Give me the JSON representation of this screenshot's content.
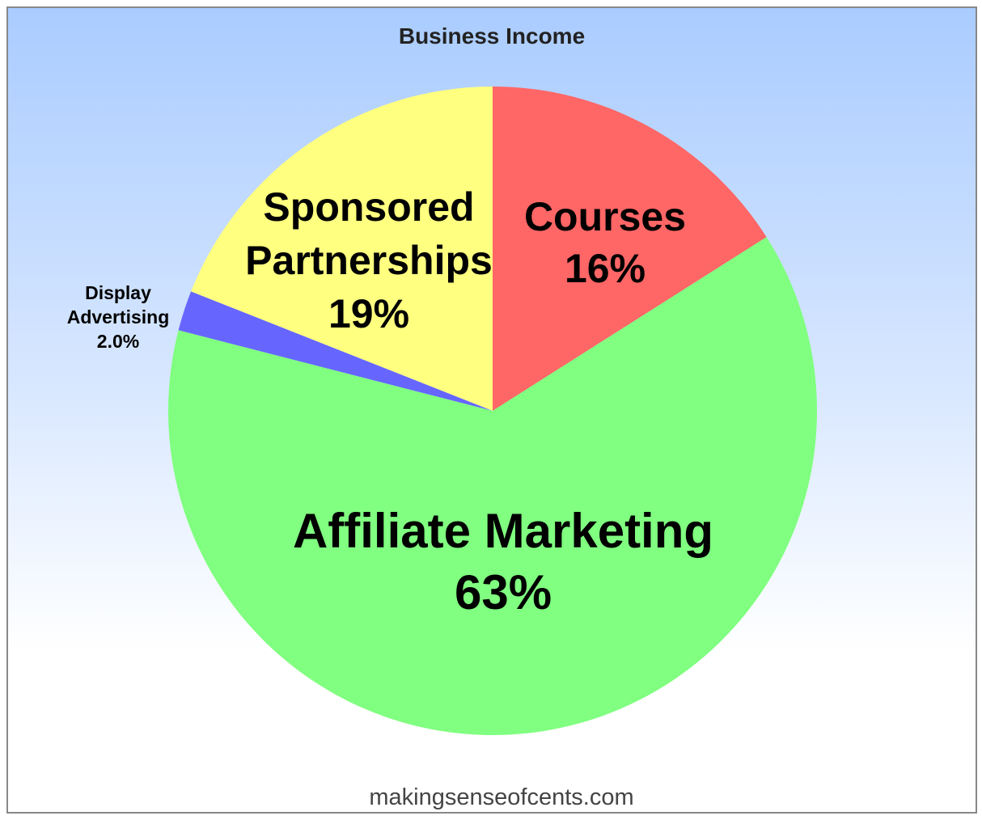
{
  "chart_data": {
    "type": "pie",
    "title": "Business Income",
    "start_angle": "12 o'clock, clockwise",
    "slices": [
      {
        "label": "Courses",
        "value": 16,
        "value_label": "16%",
        "color": "#ff6666"
      },
      {
        "label": "Affiliate Marketing",
        "value": 63,
        "value_label": "63%",
        "color": "#80ff80"
      },
      {
        "label": "Display Advertising",
        "value": 2.0,
        "value_label": "2.0%",
        "color": "#6666ff"
      },
      {
        "label": "Sponsored Partnerships",
        "value": 19,
        "value_label": "19%",
        "color": "#ffff80"
      }
    ],
    "watermark": "makingsenseofcents.com"
  }
}
